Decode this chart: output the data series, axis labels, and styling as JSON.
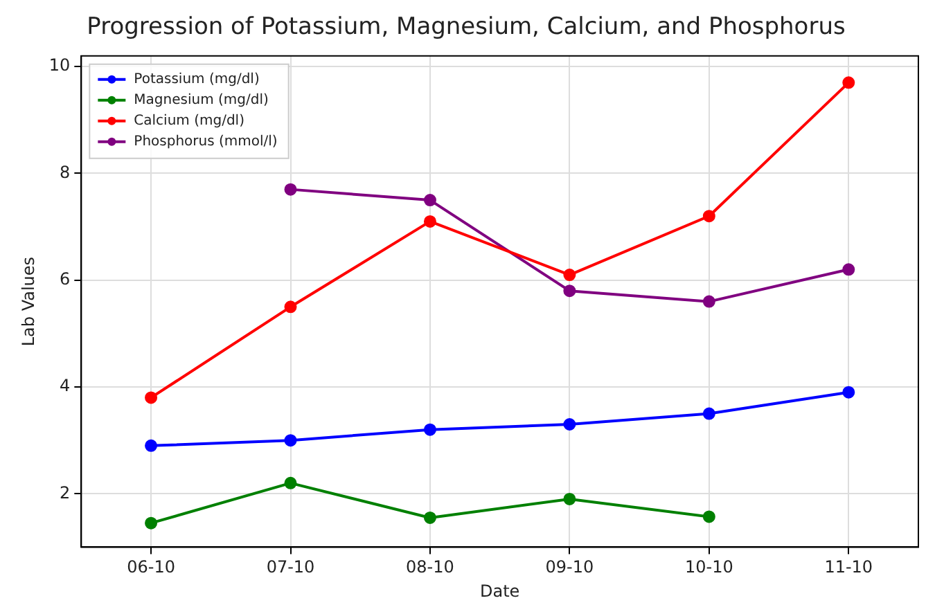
{
  "chart_data": {
    "type": "line",
    "title": "Progression of Potassium, Magnesium, Calcium, and Phosphorus",
    "xlabel": "Date",
    "ylabel": "Lab Values",
    "categories": [
      "06-10",
      "07-10",
      "08-10",
      "09-10",
      "10-10",
      "11-10"
    ],
    "series": [
      {
        "name": "Potassium (mg/dl)",
        "color": "#0000ff",
        "values": [
          2.9,
          3.0,
          3.2,
          3.3,
          3.5,
          3.9
        ]
      },
      {
        "name": "Magnesium (mg/dl)",
        "color": "#008000",
        "values": [
          1.45,
          2.2,
          1.55,
          1.9,
          1.57,
          null
        ]
      },
      {
        "name": "Calcium (mg/dl)",
        "color": "#ff0000",
        "values": [
          3.8,
          5.5,
          7.1,
          6.1,
          7.2,
          9.7
        ]
      },
      {
        "name": "Phosphorus (mmol/l)",
        "color": "#800080",
        "values": [
          null,
          7.7,
          7.5,
          5.8,
          5.6,
          6.2
        ]
      }
    ],
    "ylim": [
      1.0,
      10.2
    ],
    "yticks": [
      2,
      4,
      6,
      8,
      10
    ],
    "grid": true,
    "legend": "top left",
    "marker": "circle",
    "line_style": "solid"
  }
}
